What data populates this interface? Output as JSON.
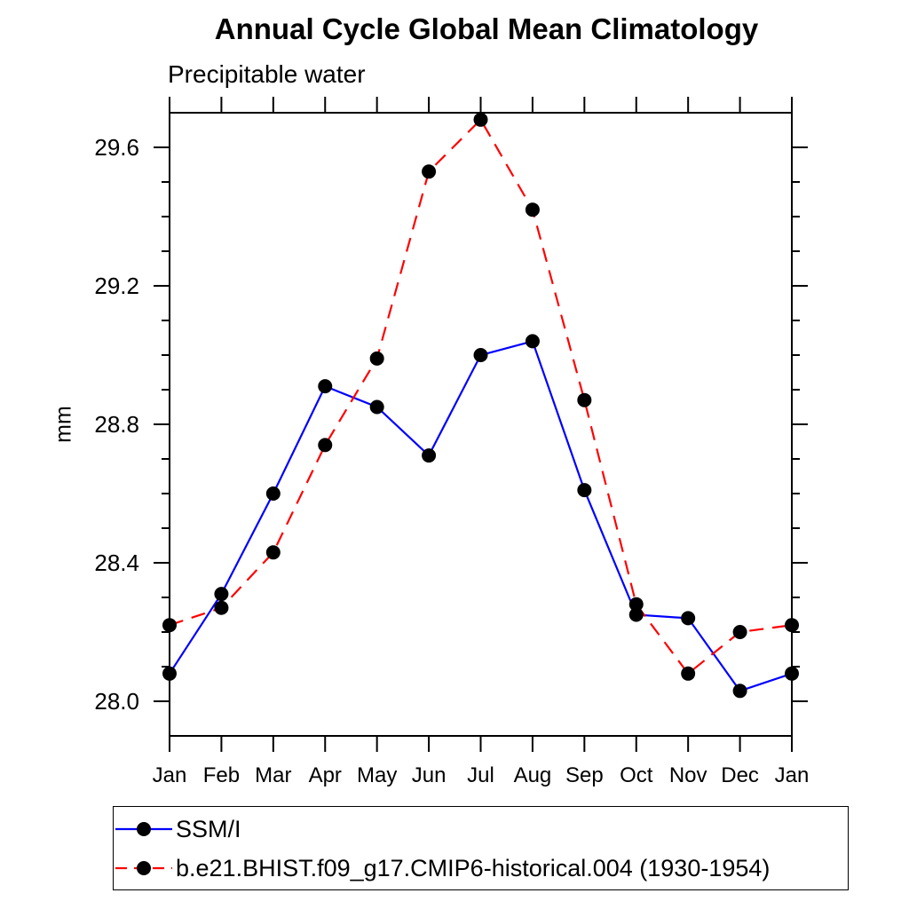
{
  "chart_data": {
    "type": "line",
    "title": "Annual Cycle Global Mean Climatology",
    "subtitle": "Precipitable water",
    "xlabel": "",
    "ylabel": "mm",
    "categories": [
      "Jan",
      "Feb",
      "Mar",
      "Apr",
      "May",
      "Jun",
      "Jul",
      "Aug",
      "Sep",
      "Oct",
      "Nov",
      "Dec",
      "Jan"
    ],
    "series": [
      {
        "name": "SSM/I",
        "color": "#0000ff",
        "line_style": "solid",
        "marker": "filled-circle",
        "marker_color": "#000000",
        "values": [
          28.08,
          28.31,
          28.6,
          28.91,
          28.85,
          28.71,
          29.0,
          29.04,
          28.61,
          28.25,
          28.24,
          28.03,
          28.08
        ]
      },
      {
        "name": "b.e21.BHIST.f09_g17.CMIP6-historical.004 (1930-1954)",
        "color": "#ff0000",
        "line_style": "dashed",
        "marker": "filled-circle",
        "marker_color": "#000000",
        "values": [
          28.22,
          28.27,
          28.43,
          28.74,
          28.99,
          29.53,
          29.68,
          29.42,
          28.87,
          28.28,
          28.08,
          28.2,
          28.22
        ]
      }
    ],
    "ylim": [
      27.9,
      29.7
    ],
    "yticks_major": [
      28.0,
      28.4,
      28.8,
      29.2,
      29.6
    ],
    "ytick_minor_step": 0.1,
    "grid": false,
    "legend_position": "bottom-left",
    "axis_color": "#000000"
  }
}
